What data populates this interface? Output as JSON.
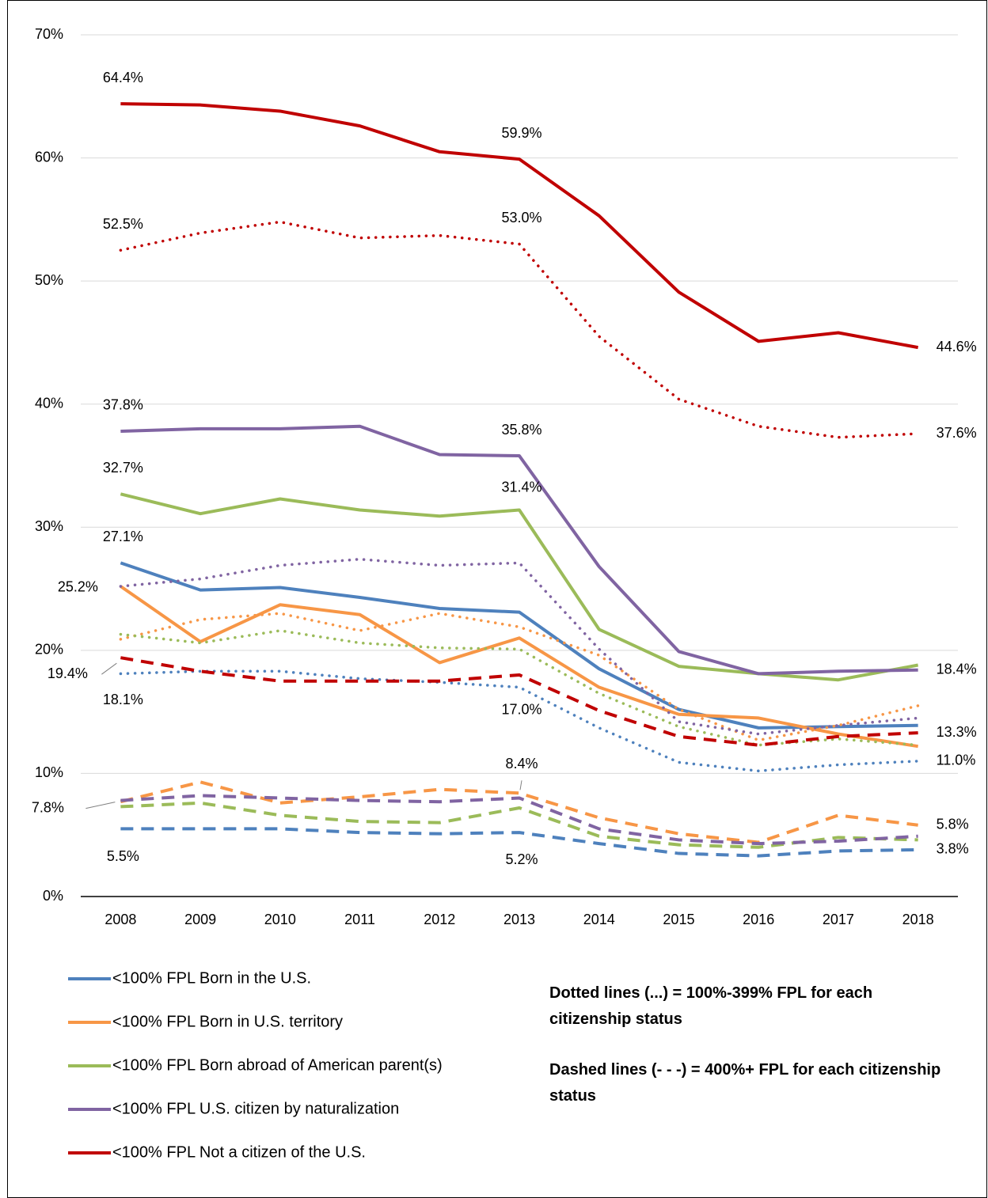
{
  "chart_data": {
    "type": "line",
    "categories": [
      "2008",
      "2009",
      "2010",
      "2011",
      "2012",
      "2013",
      "2014",
      "2015",
      "2016",
      "2017",
      "2018"
    ],
    "ylim": [
      0,
      70
    ],
    "yticks": [
      {
        "value": 0,
        "label": "0%"
      },
      {
        "value": 10,
        "label": "10%"
      },
      {
        "value": 20,
        "label": "20%"
      },
      {
        "value": 30,
        "label": "30%"
      },
      {
        "value": 40,
        "label": "40%"
      },
      {
        "value": 50,
        "label": "50%"
      },
      {
        "value": 60,
        "label": "60%"
      },
      {
        "value": 70,
        "label": "70%"
      }
    ],
    "grid": true,
    "series": [
      {
        "name": "<100% FPL Born in the U.S.",
        "color": "#4e81bd",
        "style": "solid",
        "values": [
          27.1,
          24.9,
          25.1,
          24.3,
          23.4,
          23.1,
          18.5,
          15.2,
          13.7,
          13.8,
          13.9
        ],
        "value_labels": [
          "27.1%",
          null,
          null,
          null,
          null,
          null,
          null,
          null,
          null,
          null,
          null
        ]
      },
      {
        "name": "<100% FPL Born in U.S. territory",
        "color": "#f79646",
        "style": "solid",
        "values": [
          25.2,
          20.7,
          23.7,
          22.9,
          19.0,
          21.0,
          17.0,
          14.8,
          14.5,
          13.2,
          12.2
        ],
        "value_labels": [
          "25.2%",
          null,
          null,
          null,
          null,
          null,
          null,
          null,
          null,
          null,
          null
        ]
      },
      {
        "name": "<100% FPL Born abroad of American parent(s)",
        "color": "#9bbb59",
        "style": "solid",
        "values": [
          32.7,
          31.1,
          32.3,
          31.4,
          30.9,
          31.4,
          21.7,
          18.7,
          18.1,
          17.6,
          18.8
        ],
        "value_labels": [
          "32.7%",
          null,
          null,
          null,
          null,
          "31.4%",
          null,
          null,
          null,
          null,
          null
        ]
      },
      {
        "name": "<100% FPL U.S. citizen by naturalization",
        "color": "#8064a2",
        "style": "solid",
        "values": [
          37.8,
          38.0,
          38.0,
          38.2,
          35.9,
          35.8,
          26.8,
          19.9,
          18.1,
          18.3,
          18.4
        ],
        "value_labels": [
          "37.8%",
          null,
          null,
          null,
          null,
          "35.8%",
          null,
          null,
          null,
          null,
          "18.4%"
        ]
      },
      {
        "name": "<100% FPL Not a citizen of the U.S.",
        "color": "#c00000",
        "style": "solid",
        "values": [
          64.4,
          64.3,
          63.8,
          62.6,
          60.5,
          59.9,
          55.3,
          49.1,
          45.1,
          45.8,
          44.6
        ],
        "value_labels": [
          "64.4%",
          null,
          null,
          null,
          null,
          "59.9%",
          null,
          null,
          null,
          null,
          "44.6%"
        ]
      },
      {
        "color": "#4e81bd",
        "style": "dotted",
        "values": [
          18.1,
          18.3,
          18.3,
          17.7,
          17.4,
          17.0,
          13.7,
          10.9,
          10.2,
          10.7,
          11.0
        ],
        "value_labels": [
          "18.1%",
          null,
          null,
          null,
          null,
          "17.0%",
          null,
          null,
          null,
          null,
          "11.0%"
        ]
      },
      {
        "color": "#f79646",
        "style": "dotted",
        "values": [
          20.9,
          22.5,
          23.0,
          21.6,
          23.0,
          21.9,
          19.6,
          15.2,
          12.7,
          13.9,
          15.5
        ]
      },
      {
        "color": "#9bbb59",
        "style": "dotted",
        "values": [
          21.3,
          20.6,
          21.6,
          20.6,
          20.2,
          20.1,
          16.5,
          13.8,
          12.3,
          12.8,
          12.3
        ]
      },
      {
        "color": "#8064a2",
        "style": "dotted",
        "values": [
          25.2,
          25.8,
          26.9,
          27.4,
          26.9,
          27.1,
          20.1,
          14.2,
          13.2,
          13.9,
          14.5
        ]
      },
      {
        "color": "#c00000",
        "style": "dotted",
        "values": [
          52.5,
          53.9,
          54.8,
          53.5,
          53.7,
          53.0,
          45.5,
          40.4,
          38.2,
          37.3,
          37.6
        ],
        "value_labels": [
          "52.5%",
          null,
          null,
          null,
          null,
          "53.0%",
          null,
          null,
          null,
          null,
          "37.6%"
        ]
      },
      {
        "color": "#4e81bd",
        "style": "dashed",
        "values": [
          5.5,
          5.5,
          5.5,
          5.2,
          5.1,
          5.2,
          4.3,
          3.5,
          3.3,
          3.7,
          3.8
        ],
        "value_labels": [
          "5.5%",
          null,
          null,
          null,
          null,
          "5.2%",
          null,
          null,
          null,
          null,
          "3.8%"
        ]
      },
      {
        "color": "#f79646",
        "style": "dashed",
        "values": [
          7.7,
          9.3,
          7.6,
          8.1,
          8.7,
          8.4,
          6.4,
          5.1,
          4.4,
          6.6,
          5.8
        ],
        "value_labels": [
          null,
          null,
          null,
          null,
          null,
          "8.4%",
          null,
          null,
          null,
          null,
          "5.8%"
        ]
      },
      {
        "color": "#9bbb59",
        "style": "dashed",
        "values": [
          7.3,
          7.6,
          6.6,
          6.1,
          6.0,
          7.2,
          4.9,
          4.2,
          4.0,
          4.8,
          4.6
        ]
      },
      {
        "color": "#8064a2",
        "style": "dashed",
        "values": [
          7.8,
          8.2,
          8.0,
          7.8,
          7.7,
          8.0,
          5.5,
          4.6,
          4.3,
          4.5,
          4.9
        ],
        "value_labels": [
          "7.8%",
          null,
          null,
          null,
          null,
          null,
          null,
          null,
          null,
          null,
          null
        ]
      },
      {
        "color": "#c00000",
        "style": "dashed",
        "values": [
          19.4,
          18.3,
          17.5,
          17.5,
          17.5,
          18.0,
          15.1,
          13.0,
          12.3,
          13.0,
          13.3
        ],
        "value_labels": [
          "19.4%",
          null,
          null,
          null,
          null,
          null,
          null,
          null,
          null,
          null,
          "13.3%"
        ]
      }
    ],
    "notes": [
      "Dotted lines (...) = 100%-399% FPL for each citizenship status",
      "Dashed lines (- - -) = 400%+ FPL for each citizenship status"
    ]
  }
}
